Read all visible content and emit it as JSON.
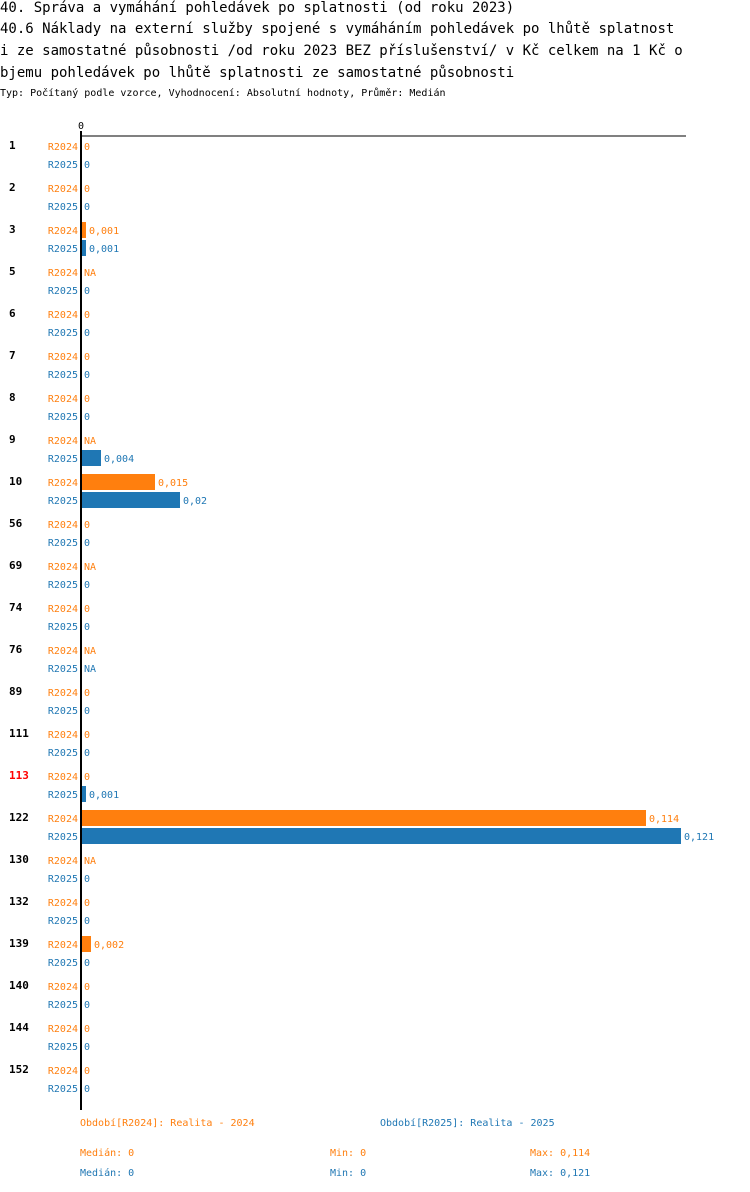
{
  "title_lines": [
    "40. Správa a vymáhání pohledávek po splatnosti (od roku 2023)",
    "40.6 Náklady na externí služby spojené s vymáháním  pohledávek po lhůtě splatnost",
    "i ze samostatné působnosti /od roku 2023 BEZ příslušenství/ v Kč celkem na 1 Kč o",
    "bjemu pohledávek po lhůtě splatnosti ze samostatné působnosti"
  ],
  "subtitle": "Typ: Počítaný podle vzorce, Vyhodnocení: Absolutní hodnoty, Průměr: Medián",
  "colors": {
    "R2024": "#ff7f0e",
    "R2025": "#1f77b4",
    "highlight": "#ff0000",
    "text": "#000000"
  },
  "chart_data": {
    "type": "bar",
    "orientation": "horizontal",
    "axis_zero_label": "0",
    "xlim": [
      0,
      0.121
    ],
    "highlight_category": "113",
    "categories": [
      "1",
      "2",
      "3",
      "5",
      "6",
      "7",
      "8",
      "9",
      "10",
      "56",
      "69",
      "74",
      "76",
      "89",
      "111",
      "113",
      "122",
      "130",
      "132",
      "139",
      "140",
      "144",
      "152"
    ],
    "series": [
      {
        "name": "R2024",
        "values": [
          0,
          0,
          0.001,
          null,
          0,
          0,
          0,
          null,
          0.015,
          0,
          null,
          0,
          null,
          0,
          0,
          0,
          0.114,
          null,
          0,
          0.002,
          0,
          0,
          0
        ],
        "labels": [
          "0",
          "0",
          "0,001",
          "NA",
          "0",
          "0",
          "0",
          "NA",
          "0,015",
          "0",
          "NA",
          "0",
          "NA",
          "0",
          "0",
          "0",
          "0,114",
          "NA",
          "0",
          "0,002",
          "0",
          "0",
          "0"
        ]
      },
      {
        "name": "R2025",
        "values": [
          0,
          0,
          0.001,
          0,
          0,
          0,
          0,
          0.004,
          0.02,
          0,
          0,
          0,
          null,
          0,
          0,
          0.001,
          0.121,
          0,
          0,
          0,
          0,
          0,
          0
        ],
        "labels": [
          "0",
          "0",
          "0,001",
          "0",
          "0",
          "0",
          "0",
          "0,004",
          "0,02",
          "0",
          "0",
          "0",
          "NA",
          "0",
          "0",
          "0,001",
          "0,121",
          "0",
          "0",
          "0",
          "0",
          "0",
          "0"
        ]
      }
    ]
  },
  "footer": {
    "legend_r2024": "Období[R2024]: Realita - 2024",
    "legend_r2025": "Období[R2025]: Realita - 2025",
    "r2024_median": "Medián: 0",
    "r2024_min": "Min: 0",
    "r2024_max": "Max: 0,114",
    "r2025_median": "Medián: 0",
    "r2025_min": "Min: 0",
    "r2025_max": "Max: 0,121"
  }
}
